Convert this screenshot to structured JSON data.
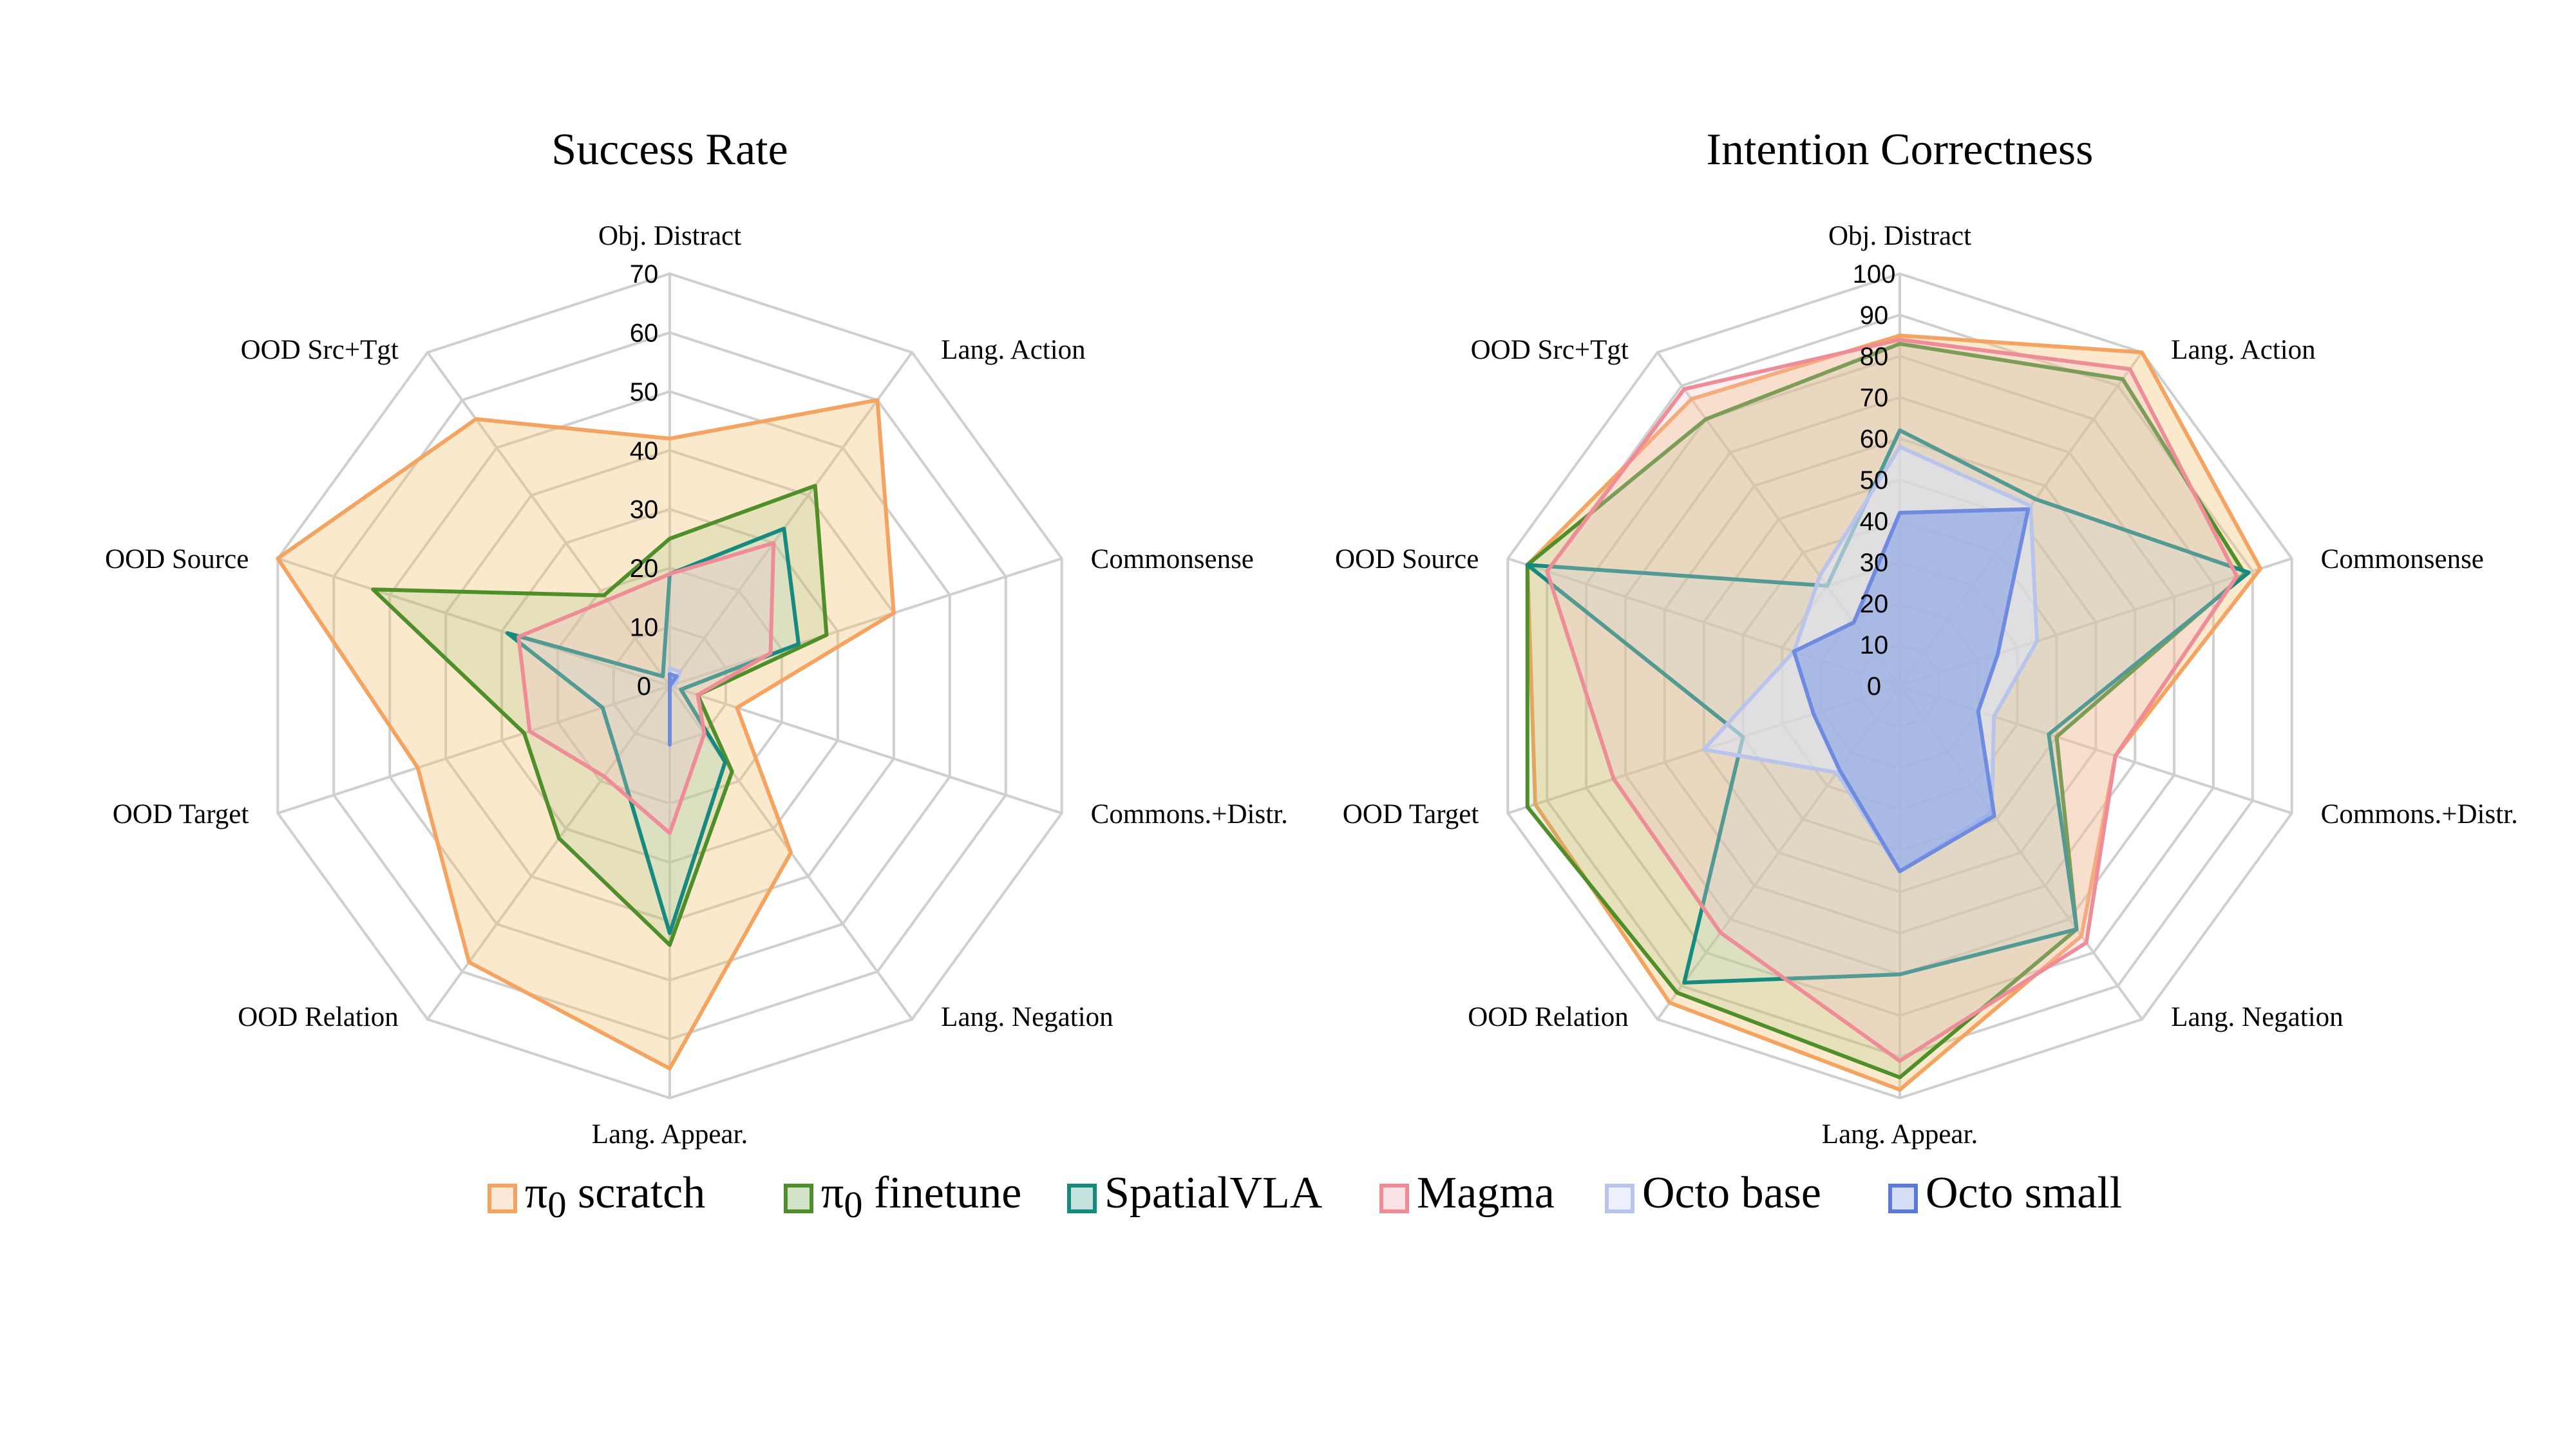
{
  "chart_data": [
    {
      "type": "radar",
      "title": "Success Rate",
      "axes": [
        "Obj. Distract",
        "Lang. Action",
        "Commonsense",
        "Commons.+Distr.",
        "Lang. Negation",
        "Lang. Appear.",
        "OOD Relation",
        "OOD Target",
        "OOD Source",
        "OOD Src+Tgt"
      ],
      "ticks": [
        "0",
        "10",
        "20",
        "30",
        "40",
        "50",
        "60",
        "70"
      ],
      "rmax": 70,
      "series": [
        {
          "name": "π0 scratch",
          "values": [
            42,
            60,
            40,
            12,
            35,
            65,
            58,
            45,
            70,
            56
          ]
        },
        {
          "name": "π0 finetune",
          "values": [
            25,
            42,
            28,
            5,
            18,
            44,
            32,
            26,
            53,
            19
          ]
        },
        {
          "name": "SpatialVLA",
          "values": [
            19,
            33,
            23,
            2,
            16,
            42,
            15,
            12,
            29,
            2
          ]
        },
        {
          "name": "Magma",
          "values": [
            19,
            30,
            18,
            5,
            10,
            25,
            19,
            25,
            27,
            18
          ]
        },
        {
          "name": "Octo base",
          "values": [
            3,
            3,
            1,
            0,
            0,
            0,
            0,
            0,
            0,
            0
          ]
        },
        {
          "name": "Octo small",
          "values": [
            2,
            2,
            0,
            0,
            0,
            10,
            0,
            0,
            0,
            0
          ]
        }
      ]
    },
    {
      "type": "radar",
      "title": "Intention Correctness",
      "axes": [
        "Obj. Distract",
        "Lang. Action",
        "Commonsense",
        "Commons.+Distr.",
        "Lang. Negation",
        "Lang. Appear.",
        "OOD Relation",
        "OOD Target",
        "OOD Source",
        "OOD Src+Tgt"
      ],
      "ticks": [
        "0",
        "10",
        "20",
        "30",
        "40",
        "50",
        "60",
        "70",
        "80",
        "90",
        "100"
      ],
      "rmax": 100,
      "series": [
        {
          "name": "π0 scratch",
          "values": [
            85,
            100,
            92,
            55,
            75,
            98,
            95,
            93,
            95,
            86
          ]
        },
        {
          "name": "π0 finetune",
          "values": [
            83,
            92,
            88,
            40,
            73,
            95,
            92,
            95,
            95,
            80
          ]
        },
        {
          "name": "SpatialVLA",
          "values": [
            62,
            56,
            89,
            38,
            73,
            70,
            89,
            40,
            95,
            30
          ]
        },
        {
          "name": "Magma",
          "values": [
            84,
            95,
            86,
            55,
            77,
            91,
            74,
            73,
            90,
            89
          ]
        },
        {
          "name": "Octo base",
          "values": [
            58,
            54,
            35,
            24,
            38,
            45,
            26,
            50,
            27,
            33
          ]
        },
        {
          "name": "Octo small",
          "values": [
            42,
            53,
            25,
            20,
            39,
            45,
            25,
            22,
            27,
            19
          ]
        }
      ]
    }
  ],
  "legend": [
    {
      "name_html": "&#960;<sub>0</sub> scratch",
      "color": "#F4A460"
    },
    {
      "name_html": "&#960;<sub>0</sub> finetune",
      "color": "#4E8F2A"
    },
    {
      "name_html": "SpatialVLA",
      "color": "#168A7F"
    },
    {
      "name_html": "Magma",
      "color": "#EE8C97"
    },
    {
      "name_html": "Octo base",
      "color": "#B9C4EC"
    },
    {
      "name_html": "Octo small",
      "color": "#5C7BD8"
    }
  ],
  "colors": {
    "π0 scratch": {
      "stroke": "#F4A460",
      "fill": "#F2C071"
    },
    "π0 finetune": {
      "stroke": "#4E8F2A",
      "fill": "#8CB86A"
    },
    "SpatialVLA": {
      "stroke": "#168A7F",
      "fill": "#B6E0D8"
    },
    "Magma": {
      "stroke": "#EE8C97",
      "fill": "#F5C3CC"
    },
    "Octo base": {
      "stroke": "#B9C4EC",
      "fill": "#DDE3F7"
    },
    "Octo small": {
      "stroke": "#6F8BE0",
      "fill": "#8CA6E8"
    }
  }
}
